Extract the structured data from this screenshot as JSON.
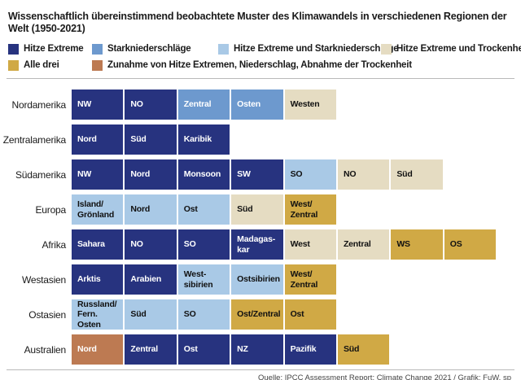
{
  "chart_data": {
    "type": "table",
    "title": "Wissenschaftlich übereinstimmend beobachtete Muster des Klimawandels in verschiedenen Regionen der Welt (1950-2021)",
    "legend": [
      {
        "label": "Hitze Extreme",
        "key": "heat"
      },
      {
        "label": "Starkniederschläge",
        "key": "precip"
      },
      {
        "label": "Hitze Extreme und Starkniederschläge",
        "key": "heat_precip"
      },
      {
        "label": "Hitze Extreme und Trockenheit",
        "key": "heat_drought"
      },
      {
        "label": "Alle drei",
        "key": "all_three"
      },
      {
        "label": "Zunahme von Hitze Extremen, Niederschlag, Abnahme der Trockenheit",
        "key": "heat_precip_less_drought"
      }
    ],
    "colors": {
      "heat": "#27337f",
      "precip": "#6d99ce",
      "heat_precip": "#a9c9e6",
      "heat_drought": "#e5dcc2",
      "all_three": "#d0a945",
      "heat_precip_less_drought": "#bd7a52"
    },
    "text_colors": {
      "heat": "#ffffff",
      "precip": "#ffffff",
      "heat_precip": "#111111",
      "heat_drought": "#111111",
      "all_three": "#111111",
      "heat_precip_less_drought": "#ffffff"
    },
    "categories": [
      "Nordamerika",
      "Zentralamerika",
      "Südamerika",
      "Europa",
      "Afrika",
      "Westasien",
      "Ostasien",
      "Australien"
    ],
    "rows": [
      {
        "region": "Nordamerika",
        "cells": [
          {
            "label": "NW",
            "key": "heat"
          },
          {
            "label": "NO",
            "key": "heat"
          },
          {
            "label": "Zentral",
            "key": "precip"
          },
          {
            "label": "Osten",
            "key": "precip"
          },
          {
            "label": "Westen",
            "key": "heat_drought"
          }
        ]
      },
      {
        "region": "Zentralamerika",
        "cells": [
          {
            "label": "Nord",
            "key": "heat"
          },
          {
            "label": "Süd",
            "key": "heat"
          },
          {
            "label": "Karibik",
            "key": "heat"
          }
        ]
      },
      {
        "region": "Südamerika",
        "cells": [
          {
            "label": "NW",
            "key": "heat"
          },
          {
            "label": "Nord",
            "key": "heat"
          },
          {
            "label": "Monsoon",
            "key": "heat"
          },
          {
            "label": "SW",
            "key": "heat"
          },
          {
            "label": "SO",
            "key": "heat_precip"
          },
          {
            "label": "NO",
            "key": "heat_drought"
          },
          {
            "label": "Süd",
            "key": "heat_drought"
          }
        ]
      },
      {
        "region": "Europa",
        "cells": [
          {
            "label": "Island/\nGrönland",
            "key": "heat_precip"
          },
          {
            "label": "Nord",
            "key": "heat_precip"
          },
          {
            "label": "Ost",
            "key": "heat_precip"
          },
          {
            "label": "Süd",
            "key": "heat_drought"
          },
          {
            "label": "West/\nZentral",
            "key": "all_three"
          }
        ]
      },
      {
        "region": "Afrika",
        "cells": [
          {
            "label": "Sahara",
            "key": "heat"
          },
          {
            "label": "NO",
            "key": "heat"
          },
          {
            "label": "SO",
            "key": "heat"
          },
          {
            "label": "Madagas-\nkar",
            "key": "heat"
          },
          {
            "label": "West",
            "key": "heat_drought"
          },
          {
            "label": "Zentral",
            "key": "heat_drought"
          },
          {
            "label": "WS",
            "key": "all_three"
          },
          {
            "label": "OS",
            "key": "all_three"
          }
        ]
      },
      {
        "region": "Westasien",
        "cells": [
          {
            "label": "Arktis",
            "key": "heat"
          },
          {
            "label": "Arabien",
            "key": "heat"
          },
          {
            "label": "West-\nsibirien",
            "key": "heat_precip"
          },
          {
            "label": "Ostsibirien",
            "key": "heat_precip"
          },
          {
            "label": "West/\nZentral",
            "key": "all_three"
          }
        ]
      },
      {
        "region": "Ostasien",
        "cells": [
          {
            "label": "Russland/\nFern. Osten",
            "key": "heat_precip"
          },
          {
            "label": "Süd",
            "key": "heat_precip"
          },
          {
            "label": "SO",
            "key": "heat_precip"
          },
          {
            "label": "Ost/Zentral",
            "key": "all_three"
          },
          {
            "label": "Ost",
            "key": "all_three"
          }
        ]
      },
      {
        "region": "Australien",
        "cells": [
          {
            "label": "Nord",
            "key": "heat_precip_less_drought"
          },
          {
            "label": "Zentral",
            "key": "heat"
          },
          {
            "label": "Ost",
            "key": "heat"
          },
          {
            "label": "NZ",
            "key": "heat"
          },
          {
            "label": "Pazifik",
            "key": "heat"
          },
          {
            "label": "Süd",
            "key": "all_three"
          }
        ]
      }
    ],
    "source": "Quelle: IPCC Assessment Report: Climate Change 2021 / Grafik: FuW, sp"
  }
}
